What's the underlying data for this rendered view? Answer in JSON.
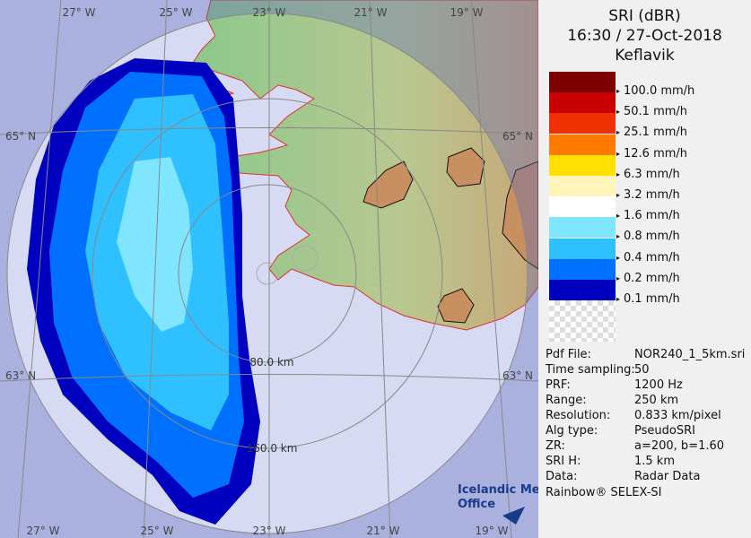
{
  "map": {
    "lon_labels_top": [
      "27° W",
      "25° W",
      "23° W",
      "21° W",
      "19° W"
    ],
    "lon_labels_bottom": [
      "27° W",
      "25° W",
      "23° W",
      "21° W",
      "19° W"
    ],
    "lat_labels_left": [
      "65° N",
      "63° N"
    ],
    "lat_labels_right": [
      "65° N",
      "63° N"
    ],
    "range_labels": [
      "80.0 km",
      "160.0 km"
    ],
    "logo": [
      "Icelandic Met",
      "Office"
    ]
  },
  "panel": {
    "title": [
      "SRI (dBR)",
      "16:30 / 27-Oct-2018",
      "Keflavik"
    ],
    "legend": [
      {
        "label": "100.0 mm/h",
        "color": "#7d0000"
      },
      {
        "label": "50.1 mm/h",
        "color": "#c80000"
      },
      {
        "label": "25.1 mm/h",
        "color": "#f03000"
      },
      {
        "label": "12.6 mm/h",
        "color": "#ff7a00"
      },
      {
        "label": "6.3 mm/h",
        "color": "#ffe000"
      },
      {
        "label": "3.2 mm/h",
        "color": "#fff5b8"
      },
      {
        "label": "1.6 mm/h",
        "color": "#ffffff"
      },
      {
        "label": "0.8 mm/h",
        "color": "#80e6ff"
      },
      {
        "label": "0.4 mm/h",
        "color": "#2ec0ff"
      },
      {
        "label": "0.2 mm/h",
        "color": "#0070ff"
      },
      {
        "label": "0.1 mm/h",
        "color": "#0000c0"
      }
    ],
    "info": [
      [
        "Pdf File:",
        "NOR240_1_5km.sri"
      ],
      [
        "Time sampling:",
        "50"
      ],
      [
        "PRF:",
        "1200 Hz"
      ],
      [
        "Range:",
        "250 km"
      ],
      [
        "Resolution:",
        "0.833 km/pixel"
      ],
      [
        "Alg type:",
        "PseudoSRI"
      ],
      [
        "ZR:",
        "a=200, b=1.60"
      ],
      [
        "SRI H:",
        "1.5 km"
      ],
      [
        "Data:",
        "Radar Data"
      ]
    ],
    "footer": "Rainbow® SELEX-SI"
  }
}
